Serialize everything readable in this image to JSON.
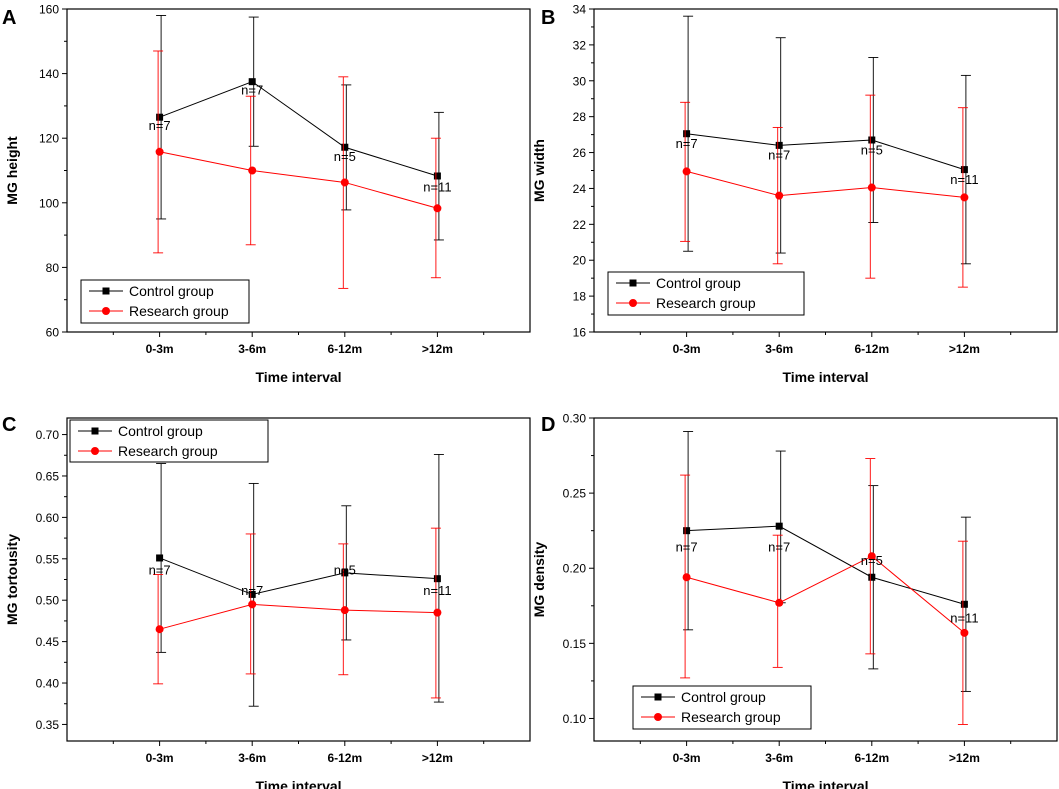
{
  "figure": {
    "width": 1059,
    "height": 789
  },
  "colors": {
    "control": "#000000",
    "research": "#ff0000",
    "axis": "#000000"
  },
  "chart_data": [
    {
      "type": "line",
      "panel_label": "A",
      "xlabel": "Time interval",
      "ylabel": "MG height",
      "categories": [
        "0-3m",
        "3-6m",
        "6-12m",
        ">12m"
      ],
      "ylim": [
        60,
        160
      ],
      "yticks": [
        60,
        80,
        100,
        120,
        140,
        160
      ],
      "ytick_labels": [
        "60",
        "80",
        "100",
        "120",
        "140",
        "160"
      ],
      "legend_position": "bottom-left",
      "series": [
        {
          "name": "Control group",
          "color": "#000000",
          "marker": "square",
          "values": [
            126.5,
            137.5,
            117.2,
            108.3
          ],
          "err_low": [
            95.0,
            117.5,
            97.8,
            88.5
          ],
          "err_high": [
            158.0,
            157.5,
            136.5,
            128.0
          ]
        },
        {
          "name": "Research group",
          "color": "#ff0000",
          "marker": "circle",
          "values": [
            115.8,
            110.0,
            106.3,
            98.3
          ],
          "err_low": [
            84.5,
            87.0,
            73.5,
            76.8
          ],
          "err_high": [
            147.0,
            133.0,
            139.0,
            120.0
          ]
        }
      ],
      "annotations": [
        {
          "text": "n=7",
          "category": "0-3m",
          "y": 122.5
        },
        {
          "text": "n=7",
          "category": "3-6m",
          "y": 133.5
        },
        {
          "text": "n=5",
          "category": "6-12m",
          "y": 113.0
        },
        {
          "text": "n=11",
          "category": ">12m",
          "y": 103.5
        }
      ]
    },
    {
      "type": "line",
      "panel_label": "B",
      "xlabel": "Time interval",
      "ylabel": "MG width",
      "categories": [
        "0-3m",
        "3-6m",
        "6-12m",
        ">12m"
      ],
      "ylim": [
        16,
        34
      ],
      "yticks": [
        16,
        18,
        20,
        22,
        24,
        26,
        28,
        30,
        32,
        34
      ],
      "ytick_labels": [
        "16",
        "18",
        "20",
        "22",
        "24",
        "26",
        "28",
        "30",
        "32",
        "34"
      ],
      "legend_position": "bottom-left",
      "series": [
        {
          "name": "Control group",
          "color": "#000000",
          "marker": "square",
          "values": [
            27.05,
            26.4,
            26.7,
            25.05
          ],
          "err_low": [
            20.5,
            20.4,
            22.1,
            19.8
          ],
          "err_high": [
            33.6,
            32.4,
            31.3,
            30.3
          ]
        },
        {
          "name": "Research group",
          "color": "#ff0000",
          "marker": "circle",
          "values": [
            24.95,
            23.6,
            24.05,
            23.5
          ],
          "err_low": [
            21.05,
            19.8,
            19.0,
            18.5
          ],
          "err_high": [
            28.8,
            27.4,
            29.2,
            28.5
          ]
        }
      ],
      "annotations": [
        {
          "text": "n=7",
          "category": "0-3m",
          "y": 26.25
        },
        {
          "text": "n=7",
          "category": "3-6m",
          "y": 25.6
        },
        {
          "text": "n=5",
          "category": "6-12m",
          "y": 25.9
        },
        {
          "text": "n=11",
          "category": ">12m",
          "y": 24.25
        }
      ]
    },
    {
      "type": "line",
      "panel_label": "C",
      "xlabel": "Time interval",
      "ylabel": "MG tortousity",
      "categories": [
        "0-3m",
        "3-6m",
        "6-12m",
        ">12m"
      ],
      "ylim": [
        0.33,
        0.72
      ],
      "yticks": [
        0.35,
        0.4,
        0.45,
        0.5,
        0.55,
        0.6,
        0.65,
        0.7
      ],
      "ytick_labels": [
        "0.35",
        "0.40",
        "0.45",
        "0.50",
        "0.55",
        "0.60",
        "0.65",
        "0.70"
      ],
      "legend_position": "top-left",
      "series": [
        {
          "name": "Control group",
          "color": "#000000",
          "marker": "square",
          "values": [
            0.551,
            0.507,
            0.533,
            0.526
          ],
          "err_low": [
            0.437,
            0.372,
            0.452,
            0.377
          ],
          "err_high": [
            0.665,
            0.641,
            0.614,
            0.676
          ]
        },
        {
          "name": "Research group",
          "color": "#ff0000",
          "marker": "circle",
          "values": [
            0.465,
            0.495,
            0.488,
            0.485
          ],
          "err_low": [
            0.399,
            0.411,
            0.41,
            0.382
          ],
          "err_high": [
            0.531,
            0.58,
            0.568,
            0.587
          ]
        }
      ],
      "annotations": [
        {
          "text": "n=7",
          "category": "0-3m",
          "y": 0.531
        },
        {
          "text": "n=7",
          "category": "3-6m",
          "y": 0.506
        },
        {
          "text": "n=5",
          "category": "6-12m",
          "y": 0.531
        },
        {
          "text": "n=11",
          "category": ">12m",
          "y": 0.506
        }
      ]
    },
    {
      "type": "line",
      "panel_label": "D",
      "xlabel": "Time interval",
      "ylabel": "MG density",
      "categories": [
        "0-3m",
        "3-6m",
        "6-12m",
        ">12m"
      ],
      "ylim": [
        0.085,
        0.3
      ],
      "yticks": [
        0.1,
        0.15,
        0.2,
        0.25,
        0.3
      ],
      "ytick_labels": [
        "0.10",
        "0.15",
        "0.20",
        "0.25",
        "0.30"
      ],
      "legend_position": "bottom-left",
      "series": [
        {
          "name": "Control group",
          "color": "#000000",
          "marker": "square",
          "values": [
            0.225,
            0.228,
            0.194,
            0.176
          ],
          "err_low": [
            0.159,
            0.177,
            0.133,
            0.118
          ],
          "err_high": [
            0.291,
            0.278,
            0.255,
            0.234
          ]
        },
        {
          "name": "Research group",
          "color": "#ff0000",
          "marker": "circle",
          "values": [
            0.194,
            0.177,
            0.208,
            0.157
          ],
          "err_low": [
            0.127,
            0.134,
            0.143,
            0.096
          ],
          "err_high": [
            0.262,
            0.222,
            0.273,
            0.218
          ]
        }
      ],
      "annotations": [
        {
          "text": "n=7",
          "category": "0-3m",
          "y": 0.211
        },
        {
          "text": "n=7",
          "category": "3-6m",
          "y": 0.211
        },
        {
          "text": "n=5",
          "category": "6-12m",
          "y": 0.202
        },
        {
          "text": "n=11",
          "category": ">12m",
          "y": 0.164
        }
      ]
    }
  ]
}
